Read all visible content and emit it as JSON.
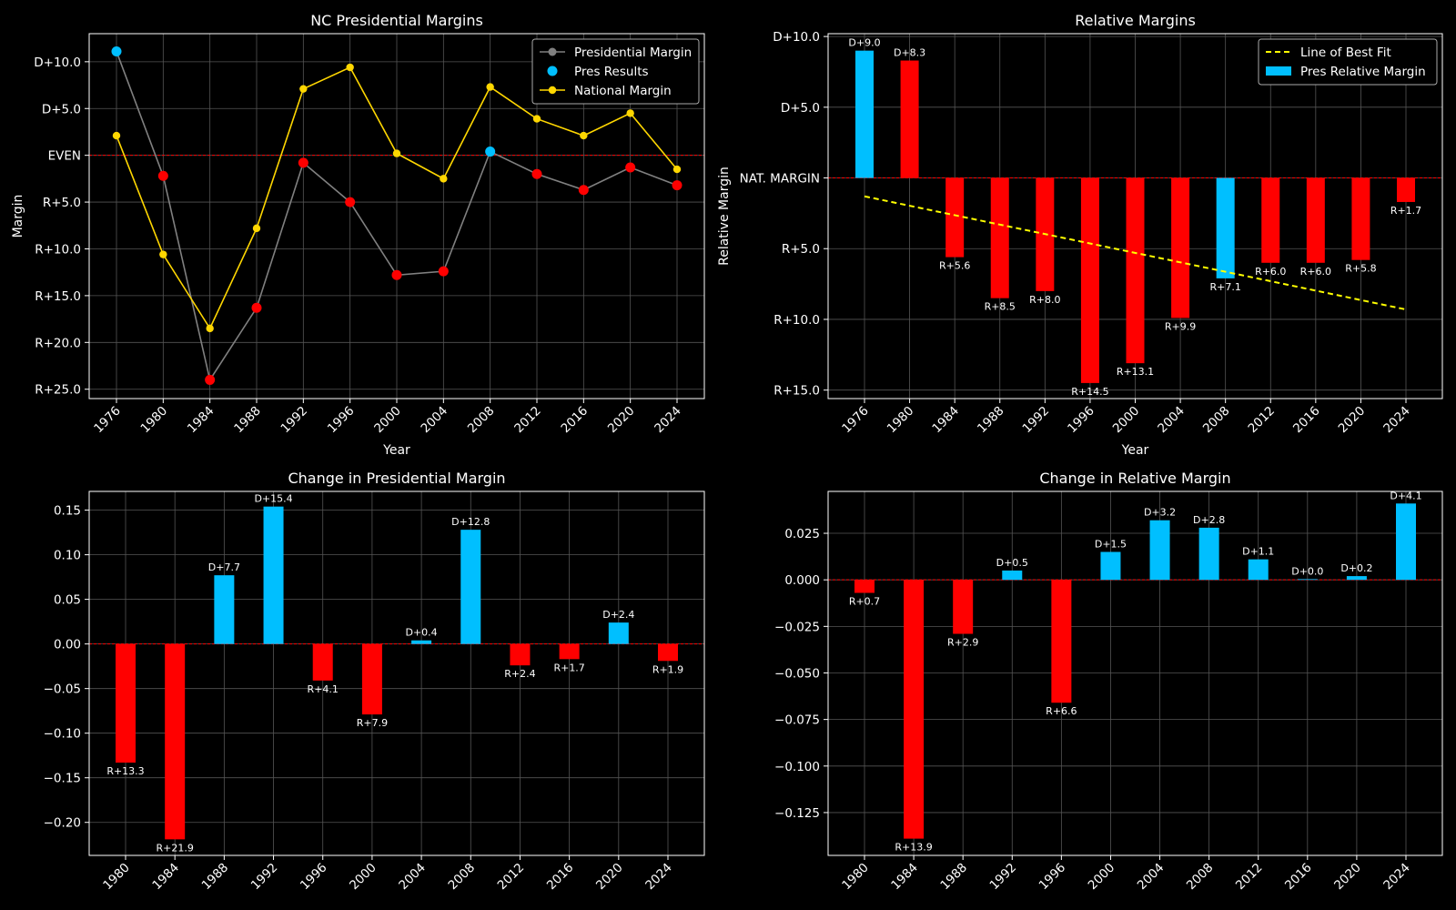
{
  "chart_data": [
    {
      "type": "line",
      "title": "NC Presidential Margins",
      "xlabel": "Year",
      "ylabel": "Margin",
      "x": [
        1976,
        1980,
        1984,
        1988,
        1992,
        1996,
        2000,
        2004,
        2008,
        2012,
        2016,
        2020,
        2024
      ],
      "ylim": [
        -26,
        13
      ],
      "yticks": [
        10,
        5,
        0,
        -5,
        -10,
        -15,
        -20,
        -25
      ],
      "ytick_labels": [
        "D+10.0",
        "D+5.0",
        "EVEN",
        "R+5.0",
        "R+10.0",
        "R+15.0",
        "R+20.0",
        "R+25.0"
      ],
      "series": [
        {
          "name": "Presidential Margin",
          "color": "#808080",
          "values": [
            11.1,
            -2.2,
            -24.0,
            -16.3,
            -0.8,
            -5.0,
            -12.8,
            -12.4,
            0.4,
            -2.0,
            -3.7,
            -1.3,
            -3.2
          ]
        },
        {
          "name": "National Margin",
          "color": "#FFD700",
          "values": [
            2.1,
            -10.6,
            -18.5,
            -7.8,
            7.1,
            9.4,
            0.2,
            -2.5,
            7.3,
            3.9,
            2.1,
            4.5,
            -1.5
          ]
        }
      ],
      "point_colors": [
        "#00BFFF",
        "#FF0000",
        "#FF0000",
        "#FF0000",
        "#FF0000",
        "#FF0000",
        "#FF0000",
        "#FF0000",
        "#00BFFF",
        "#FF0000",
        "#FF0000",
        "#FF0000",
        "#FF0000"
      ],
      "legend": {
        "position": "top-right",
        "entries": [
          "Presidential Margin",
          "Pres Results",
          "National Margin"
        ]
      },
      "grid": true
    },
    {
      "type": "bar",
      "title": "Relative Margins",
      "xlabel": "Year",
      "ylabel": "Relative Margin",
      "categories": [
        "1976",
        "1980",
        "1984",
        "1988",
        "1992",
        "1996",
        "2000",
        "2004",
        "2008",
        "2012",
        "2016",
        "2020",
        "2024"
      ],
      "values": [
        9.0,
        8.3,
        -5.6,
        -8.5,
        -8.0,
        -14.5,
        -13.1,
        -9.9,
        -7.1,
        -6.0,
        -6.0,
        -5.8,
        -1.7
      ],
      "data_labels": [
        "D+9.0",
        "D+8.3",
        "R+5.6",
        "R+8.5",
        "R+8.0",
        "R+14.5",
        "R+13.1",
        "R+9.9",
        "R+7.1",
        "R+6.0",
        "R+6.0",
        "R+5.8",
        "R+1.7"
      ],
      "bar_colors": [
        "#00BFFF",
        "#FF0000",
        "#FF0000",
        "#FF0000",
        "#FF0000",
        "#FF0000",
        "#FF0000",
        "#FF0000",
        "#00BFFF",
        "#FF0000",
        "#FF0000",
        "#FF0000",
        "#FF0000"
      ],
      "trendline": {
        "name": "Line of Best Fit",
        "color": "#FFFF00",
        "start": -1.3,
        "end": -9.3
      },
      "ylim": [
        -15.6,
        10.2
      ],
      "yticks": [
        10,
        5,
        0,
        -5,
        -10,
        -15
      ],
      "ytick_labels": [
        "D+10.0",
        "D+5.0",
        "NAT. MARGIN",
        "R+5.0",
        "R+10.0",
        "R+15.0"
      ],
      "legend": {
        "position": "top-right",
        "entries": [
          "Line of Best Fit",
          "Pres Relative Margin"
        ]
      },
      "grid": true
    },
    {
      "type": "bar",
      "title": "Change in Presidential Margin",
      "categories": [
        "1980",
        "1984",
        "1988",
        "1992",
        "1996",
        "2000",
        "2004",
        "2008",
        "2012",
        "2016",
        "2020",
        "2024"
      ],
      "values": [
        -0.133,
        -0.219,
        0.077,
        0.154,
        -0.041,
        -0.079,
        0.004,
        0.128,
        -0.024,
        -0.017,
        0.024,
        -0.019
      ],
      "data_labels": [
        "R+13.3",
        "R+21.9",
        "D+7.7",
        "D+15.4",
        "R+4.1",
        "R+7.9",
        "D+0.4",
        "D+12.8",
        "R+2.4",
        "R+1.7",
        "D+2.4",
        "R+1.9"
      ],
      "ylim": [
        -0.237,
        0.171
      ],
      "yticks": [
        0.15,
        0.1,
        0.05,
        0.0,
        -0.05,
        -0.1,
        -0.15,
        -0.2
      ],
      "ytick_labels": [
        "0.15",
        "0.10",
        "0.05",
        "0.00",
        "−0.05",
        "−0.10",
        "−0.15",
        "−0.20"
      ],
      "grid": true
    },
    {
      "type": "bar",
      "title": "Change in Relative Margin",
      "categories": [
        "1980",
        "1984",
        "1988",
        "1992",
        "1996",
        "2000",
        "2004",
        "2008",
        "2012",
        "2016",
        "2020",
        "2024"
      ],
      "values": [
        -0.007,
        -0.139,
        -0.029,
        0.005,
        -0.066,
        0.015,
        0.032,
        0.028,
        0.011,
        0.0004,
        0.002,
        0.041
      ],
      "data_labels": [
        "R+0.7",
        "R+13.9",
        "R+2.9",
        "D+0.5",
        "R+6.6",
        "D+1.5",
        "D+3.2",
        "D+2.8",
        "D+1.1",
        "D+0.0",
        "D+0.2",
        "D+4.1"
      ],
      "ylim": [
        -0.148,
        0.0475
      ],
      "yticks": [
        0.025,
        0.0,
        -0.025,
        -0.05,
        -0.075,
        -0.1,
        -0.125
      ],
      "ytick_labels": [
        "0.025",
        "0.000",
        "−0.025",
        "−0.050",
        "−0.075",
        "−0.100",
        "−0.125"
      ],
      "grid": true
    }
  ]
}
